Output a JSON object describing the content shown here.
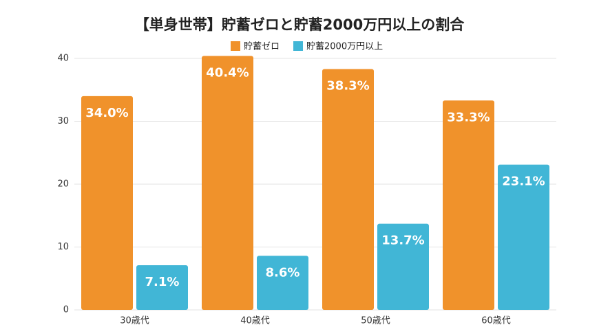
{
  "chart_data": {
    "type": "bar",
    "title": "【単身世帯】貯蓄ゼロと貯蓄2000万円以上の割合",
    "categories": [
      "30歳代",
      "40歳代",
      "50歳代",
      "60歳代"
    ],
    "series": [
      {
        "name": "貯蓄ゼロ",
        "color": "#f0922b",
        "values": [
          34.0,
          40.4,
          38.3,
          33.3
        ],
        "value_labels": [
          "34.0%",
          "40.4%",
          "38.3%",
          "33.3%"
        ]
      },
      {
        "name": "貯蓄2000万円以上",
        "color": "#41b6d6",
        "values": [
          7.1,
          8.6,
          13.7,
          23.1
        ],
        "value_labels": [
          "7.1%",
          "8.6%",
          "13.7%",
          "23.1%"
        ]
      }
    ],
    "ylim": [
      0,
      40
    ],
    "yticks": [
      0,
      10,
      20,
      30,
      40
    ],
    "grid": true,
    "legend": "top"
  }
}
